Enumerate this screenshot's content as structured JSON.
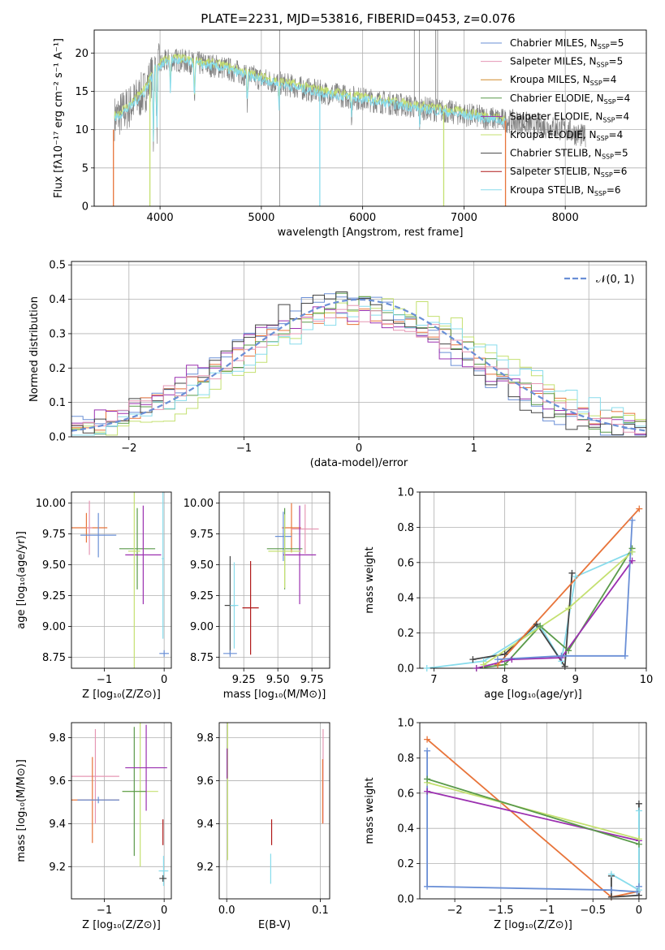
{
  "title": "PLATE=2231, MJD=53816, FIBERID=0453, z=0.076",
  "colors": {
    "Chabrier MILES": "#6a8fd6",
    "Salpeter MILES": "#e597b4",
    "Kroupa MILES": "#d08b2a",
    "Chabrier ELODIE": "#5a9a4a",
    "Salpeter ELODIE": "#9b30b0",
    "Kroupa ELODIE": "#c4e070",
    "Chabrier STELIB": "#444444",
    "Salpeter STELIB": "#b01818",
    "Kroupa STELIB": "#88dcec",
    "data": "#808080",
    "orange": "#e8743a"
  },
  "chart_data": [
    {
      "id": "spectrum",
      "type": "line",
      "xlabel": "wavelength [Angstrom, rest frame]",
      "ylabel": "Flux [fλ10⁻¹⁷ erg cm⁻² s⁻¹ A⁻¹]",
      "xlim": [
        3350,
        8800
      ],
      "ylim": [
        0,
        23
      ],
      "xticks": [
        4000,
        5000,
        6000,
        7000,
        8000
      ],
      "yticks": [
        0,
        5,
        10,
        15,
        20
      ],
      "legend_position": "top-right",
      "legend": [
        {
          "label": "Chabrier MILES, N",
          "sub": "SSP",
          "tail": "=5",
          "color": "#6a8fd6"
        },
        {
          "label": "Salpeter MILES, N",
          "sub": "SSP",
          "tail": "=5",
          "color": "#e597b4"
        },
        {
          "label": "Kroupa MILES, N",
          "sub": "SSP",
          "tail": "=4",
          "color": "#d08b2a"
        },
        {
          "label": "Chabrier ELODIE, N",
          "sub": "SSP",
          "tail": "=4",
          "color": "#5a9a4a"
        },
        {
          "label": "Salpeter ELODIE, N",
          "sub": "SSP",
          "tail": "=4",
          "color": "#9b30b0"
        },
        {
          "label": "Kroupa ELODIE, N",
          "sub": "SSP",
          "tail": "=4",
          "color": "#c4e070"
        },
        {
          "label": "Chabrier STELIB, N",
          "sub": "SSP",
          "tail": "=5",
          "color": "#444444"
        },
        {
          "label": "Salpeter STELIB, N",
          "sub": "SSP",
          "tail": "=6",
          "color": "#b01818"
        },
        {
          "label": "Kroupa STELIB, N",
          "sub": "SSP",
          "tail": "=6",
          "color": "#88dcec"
        }
      ],
      "continuum": [
        [
          3550,
          11.5
        ],
        [
          3700,
          13
        ],
        [
          3850,
          15
        ],
        [
          3950,
          18
        ],
        [
          4100,
          19.2
        ],
        [
          4300,
          18.8
        ],
        [
          4600,
          18.2
        ],
        [
          5000,
          16.6
        ],
        [
          5500,
          15.1
        ],
        [
          6000,
          14
        ],
        [
          6500,
          13
        ],
        [
          7000,
          12
        ],
        [
          7500,
          11
        ],
        [
          8000,
          10
        ],
        [
          8200,
          9
        ]
      ],
      "gaps": [
        {
          "x": 3540,
          "color": "#e8743a"
        },
        {
          "x": 3900,
          "color": "#c4e070"
        },
        {
          "x": 5577,
          "color": "#88dcec"
        },
        {
          "x": 6800,
          "color": "#c4e070"
        },
        {
          "x": 7410,
          "color": "#e8743a"
        }
      ],
      "spikes": [
        5180,
        6510,
        6560,
        6720,
        6740
      ]
    },
    {
      "id": "residuals",
      "type": "line",
      "xlabel": "(data-model)/error",
      "ylabel": "Normed distribution",
      "xlim": [
        -2.5,
        2.5
      ],
      "ylim": [
        0,
        0.51
      ],
      "xticks": [
        -2,
        -1,
        0,
        1,
        2
      ],
      "yticks": [
        0.0,
        0.1,
        0.2,
        0.3,
        0.4,
        0.5
      ],
      "legend": [
        {
          "label": "𝒩(0, 1)",
          "color": "#6a8fd6",
          "dashed": true
        }
      ],
      "gaussian": {
        "mu": 0,
        "sigma": 1
      }
    },
    {
      "id": "age-vs-z",
      "type": "scatter",
      "xlabel": "Z [log₁₀(Z/Z⊙)]",
      "ylabel": "age  [log₁₀(age/yr)]",
      "xlim": [
        -1.55,
        0.12
      ],
      "ylim": [
        8.66,
        10.09
      ],
      "xticks": [
        -1,
        0
      ],
      "yticks": [
        8.75,
        9.0,
        9.25,
        9.5,
        9.75,
        10.0
      ],
      "points": [
        {
          "x": -1.3,
          "y": 9.8,
          "xerr": 0.35,
          "yerr": 0.12,
          "color": "#e8743a"
        },
        {
          "x": -1.25,
          "y": 9.8,
          "xerr": 0.05,
          "yerr": 0.22,
          "color": "#e597b4"
        },
        {
          "x": -1.1,
          "y": 9.74,
          "xerr": 0.3,
          "yerr": 0.18,
          "color": "#6a8fd6"
        },
        {
          "x": -0.45,
          "y": 9.63,
          "xerr": 0.3,
          "yerr": 0.33,
          "color": "#5a9a4a"
        },
        {
          "x": -0.35,
          "y": 9.58,
          "xerr": 0.3,
          "yerr": 0.4,
          "color": "#9b30b0"
        },
        {
          "x": -0.5,
          "y": 9.61,
          "xerr": 0.1,
          "yerr": 1.0,
          "color": "#c4e070"
        },
        {
          "x": -0.02,
          "y": 9.55,
          "xerr": 0.02,
          "yerr": 0.65,
          "color": "#88dcec"
        },
        {
          "x": 0.0,
          "y": 8.78,
          "xerr": 0.08,
          "yerr": 0.0,
          "color": "#6a8fd6"
        }
      ]
    },
    {
      "id": "age-vs-mass",
      "type": "scatter",
      "xlabel": "mass [log₁₀(M/M⊙)]",
      "xlim": [
        9.07,
        9.88
      ],
      "ylim": [
        8.66,
        10.09
      ],
      "xticks": [
        9.25,
        9.5,
        9.75
      ],
      "yticks": [
        8.75,
        9.0,
        9.25,
        9.5,
        9.75,
        10.0
      ],
      "points": [
        {
          "x": 9.6,
          "y": 9.8,
          "xerr": 0.07,
          "yerr": 0.2,
          "color": "#e8743a"
        },
        {
          "x": 9.7,
          "y": 9.79,
          "xerr": 0.1,
          "yerr": 0.2,
          "color": "#e597b4"
        },
        {
          "x": 9.54,
          "y": 9.73,
          "xerr": 0.06,
          "yerr": 0.2,
          "color": "#6a8fd6"
        },
        {
          "x": 9.55,
          "y": 9.63,
          "xerr": 0.13,
          "yerr": 0.33,
          "color": "#5a9a4a"
        },
        {
          "x": 9.66,
          "y": 9.58,
          "xerr": 0.12,
          "yerr": 0.4,
          "color": "#9b30b0"
        },
        {
          "x": 9.55,
          "y": 9.61,
          "xerr": 0.12,
          "yerr": 0.3,
          "color": "#c4e070"
        },
        {
          "x": 9.15,
          "y": 9.17,
          "xerr": 0.04,
          "yerr": 0.4,
          "color": "#444444"
        },
        {
          "x": 9.3,
          "y": 9.15,
          "xerr": 0.06,
          "yerr": 0.38,
          "color": "#b01818"
        },
        {
          "x": 9.18,
          "y": 9.17,
          "xerr": 0.03,
          "yerr": 0.35,
          "color": "#88dcec"
        },
        {
          "x": 9.15,
          "y": 8.78,
          "xerr": 0.05,
          "yerr": 0.0,
          "color": "#6a8fd6"
        }
      ]
    },
    {
      "id": "weight-vs-age",
      "type": "line",
      "xlabel": "age  [log₁₀(age/yr)]",
      "ylabel": "mass weight",
      "xlim": [
        6.8,
        10.0
      ],
      "ylim": [
        0,
        1.0
      ],
      "xticks": [
        7,
        8,
        9,
        10
      ],
      "yticks": [
        0.0,
        0.2,
        0.4,
        0.6,
        0.8,
        1.0
      ],
      "series": [
        {
          "color": "#88dcec",
          "x": [
            6.9,
            7.7,
            8.5,
            8.8,
            9.0,
            9.8
          ],
          "y": [
            0.0,
            0.04,
            0.24,
            0.04,
            0.52,
            0.66
          ]
        },
        {
          "color": "#444444",
          "x": [
            7.55,
            8.0,
            8.45,
            8.85,
            8.95
          ],
          "y": [
            0.05,
            0.08,
            0.25,
            0.01,
            0.54
          ]
        },
        {
          "color": "#5a9a4a",
          "x": [
            7.6,
            8.0,
            8.5,
            8.9,
            9.8
          ],
          "y": [
            0.0,
            0.02,
            0.24,
            0.1,
            0.68
          ]
        },
        {
          "color": "#9b30b0",
          "x": [
            7.6,
            8.1,
            8.8,
            9.8
          ],
          "y": [
            0.0,
            0.05,
            0.06,
            0.61
          ]
        },
        {
          "color": "#c4e070",
          "x": [
            7.7,
            8.9,
            9.8
          ],
          "y": [
            0.02,
            0.34,
            0.66
          ]
        },
        {
          "color": "#e8743a",
          "x": [
            7.9,
            9.9
          ],
          "y": [
            0.02,
            0.905
          ]
        },
        {
          "color": "#6a8fd6",
          "x": [
            7.9,
            8.8,
            9.7,
            9.8
          ],
          "y": [
            0.05,
            0.07,
            0.07,
            0.84
          ]
        }
      ]
    },
    {
      "id": "mass-vs-z",
      "type": "scatter",
      "xlabel": "Z [log₁₀(Z/Z⊙)]",
      "ylabel": "mass [log₁₀(M/M⊙)]",
      "xlim": [
        -1.55,
        0.12
      ],
      "ylim": [
        9.05,
        9.87
      ],
      "xticks": [
        -1,
        0
      ],
      "yticks": [
        9.2,
        9.4,
        9.6,
        9.8
      ],
      "points": [
        {
          "x": -1.15,
          "y": 9.62,
          "xerr": 0.4,
          "yerr": 0.22,
          "color": "#e597b4"
        },
        {
          "x": -1.2,
          "y": 9.51,
          "xerr": 0.45,
          "yerr": 0.2,
          "color": "#e8743a"
        },
        {
          "x": -1.1,
          "y": 9.51,
          "xerr": 0.35,
          "yerr": 0.0,
          "color": "#6a8fd6"
        },
        {
          "x": -0.4,
          "y": 9.55,
          "xerr": 0.3,
          "yerr": 0.35,
          "color": "#c4e070"
        },
        {
          "x": -0.5,
          "y": 9.55,
          "xerr": 0.2,
          "yerr": 0.3,
          "color": "#5a9a4a"
        },
        {
          "x": -0.3,
          "y": 9.66,
          "xerr": 0.35,
          "yerr": 0.2,
          "color": "#9b30b0"
        },
        {
          "x": -0.02,
          "y": 9.36,
          "xerr": 0.0,
          "yerr": 0.06,
          "color": "#b01818"
        },
        {
          "x": -0.01,
          "y": 9.18,
          "xerr": 0.08,
          "yerr": 0.07,
          "color": "#88dcec"
        },
        {
          "x": -0.02,
          "y": 9.145,
          "xerr": 0.06,
          "yerr": 0.0,
          "color": "#444444"
        }
      ]
    },
    {
      "id": "mass-vs-ebv",
      "type": "scatter",
      "xlabel": "E(B-V)",
      "xlim": [
        -0.008,
        0.11
      ],
      "ylim": [
        9.05,
        9.87
      ],
      "xticks": [
        0.0,
        0.1
      ],
      "yticks": [
        9.2,
        9.4,
        9.6,
        9.8
      ],
      "points": [
        {
          "x": 0.103,
          "y": 9.62,
          "xerr": 0,
          "yerr": 0.22,
          "color": "#e597b4"
        },
        {
          "x": 0.1025,
          "y": 9.55,
          "xerr": 0,
          "yerr": 0.15,
          "color": "#e8743a"
        },
        {
          "x": 0.001,
          "y": 9.55,
          "xerr": 0,
          "yerr": 0.32,
          "color": "#c4e070"
        },
        {
          "x": 0.0005,
          "y": 9.68,
          "xerr": 0,
          "yerr": 0.07,
          "color": "#9b30b0"
        },
        {
          "x": 0.048,
          "y": 9.36,
          "xerr": 0,
          "yerr": 0.06,
          "color": "#b01818"
        },
        {
          "x": 0.047,
          "y": 9.19,
          "xerr": 0,
          "yerr": 0.07,
          "color": "#88dcec"
        }
      ]
    },
    {
      "id": "weight-vs-z",
      "type": "line",
      "xlabel": "Z [log₁₀(Z/Z⊙)]",
      "ylabel": "mass weight",
      "xlim": [
        -2.38,
        0.08
      ],
      "ylim": [
        0,
        1.0
      ],
      "xticks": [
        -2.0,
        -1.5,
        -1.0,
        -0.5,
        0.0
      ],
      "yticks": [
        0.0,
        0.2,
        0.4,
        0.6,
        0.8,
        1.0
      ],
      "series": [
        {
          "color": "#e8743a",
          "x": [
            -2.3,
            -0.3,
            -0.02
          ],
          "y": [
            0.905,
            0.01,
            0.04
          ]
        },
        {
          "color": "#9b30b0",
          "x": [
            -2.3,
            0.0
          ],
          "y": [
            0.61,
            0.33
          ]
        },
        {
          "color": "#c4e070",
          "x": [
            -2.3,
            0.0
          ],
          "y": [
            0.66,
            0.34
          ]
        },
        {
          "color": "#5a9a4a",
          "x": [
            -2.3,
            0.0
          ],
          "y": [
            0.68,
            0.31
          ]
        },
        {
          "color": "#6a8fd6",
          "x": [
            -2.3,
            -2.3,
            -0.3,
            -0.02,
            0.0
          ],
          "y": [
            0.84,
            0.07,
            0.05,
            0.04,
            0.07
          ]
        },
        {
          "color": "#444444",
          "x": [
            -0.3,
            -0.3,
            0.0,
            0.0
          ],
          "y": [
            0.13,
            0.01,
            0.02,
            0.54
          ]
        },
        {
          "color": "#88dcec",
          "x": [
            -0.3,
            0.0,
            0.0
          ],
          "y": [
            0.14,
            0.05,
            0.5
          ]
        }
      ]
    }
  ]
}
